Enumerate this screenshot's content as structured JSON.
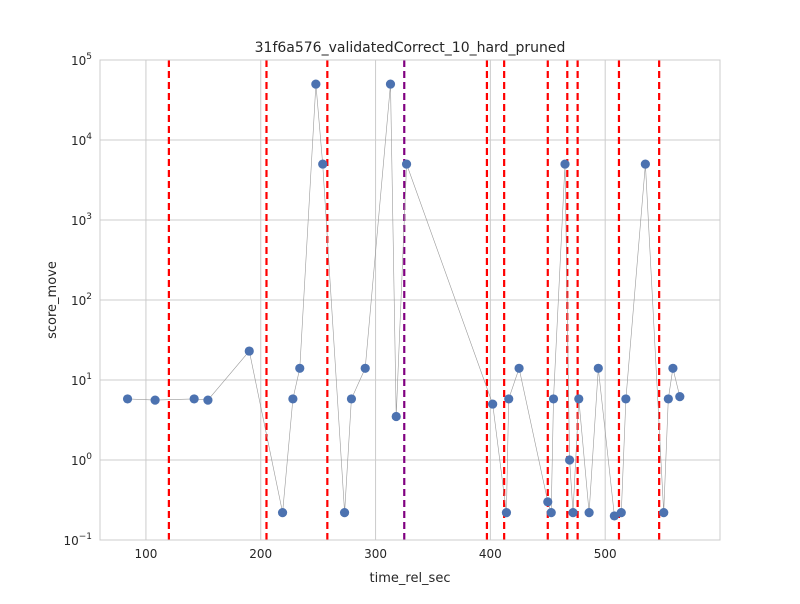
{
  "chart_data": {
    "type": "scatter",
    "title": "31f6a576_validatedCorrect_10_hard_pruned",
    "xlabel": "time_rel_sec",
    "ylabel": "score_move",
    "xlim": [
      60,
      890
    ],
    "ylim": [
      0.1,
      100000
    ],
    "yscale": "log",
    "grid": true,
    "x_ticks": [
      100,
      200,
      300,
      400,
      500
    ],
    "y_ticks": [
      {
        "value": 0.1,
        "base": "10",
        "exp": "−1"
      },
      {
        "value": 1,
        "base": "10",
        "exp": "0"
      },
      {
        "value": 10,
        "base": "10",
        "exp": "1"
      },
      {
        "value": 100,
        "base": "10",
        "exp": "2"
      },
      {
        "value": 1000,
        "base": "10",
        "exp": "3"
      },
      {
        "value": 10000,
        "base": "10",
        "exp": "4"
      },
      {
        "value": 100000,
        "base": "10",
        "exp": "5"
      }
    ],
    "series": [
      {
        "marker_color": "#4C72B0",
        "line_color": "#999999",
        "points": [
          {
            "x": 84,
            "y": 5.8
          },
          {
            "x": 108,
            "y": 5.6
          },
          {
            "x": 142,
            "y": 5.8
          },
          {
            "x": 154,
            "y": 5.6
          },
          {
            "x": 190,
            "y": 23
          },
          {
            "x": 219,
            "y": 0.22
          },
          {
            "x": 228,
            "y": 5.8
          },
          {
            "x": 234,
            "y": 14
          },
          {
            "x": 248,
            "y": 50000
          },
          {
            "x": 254,
            "y": 5000
          },
          {
            "x": 273,
            "y": 0.22
          },
          {
            "x": 279,
            "y": 5.8
          },
          {
            "x": 291,
            "y": 14
          },
          {
            "x": 313,
            "y": 50000
          },
          {
            "x": 318,
            "y": 3.5
          },
          {
            "x": 327,
            "y": 5000
          },
          {
            "x": 402,
            "y": 5
          },
          {
            "x": 414,
            "y": 0.22
          },
          {
            "x": 416,
            "y": 5.8
          },
          {
            "x": 425,
            "y": 14
          },
          {
            "x": 450,
            "y": 0.3
          },
          {
            "x": 453,
            "y": 0.22
          },
          {
            "x": 455,
            "y": 5.8
          },
          {
            "x": 465,
            "y": 5000
          },
          {
            "x": 469,
            "y": 1
          },
          {
            "x": 472,
            "y": 0.22
          },
          {
            "x": 477,
            "y": 5.8
          },
          {
            "x": 486,
            "y": 0.22
          },
          {
            "x": 494,
            "y": 14
          },
          {
            "x": 508,
            "y": 0.2
          },
          {
            "x": 514,
            "y": 0.22
          },
          {
            "x": 518,
            "y": 5.8
          },
          {
            "x": 535,
            "y": 5000
          },
          {
            "x": 551,
            "y": 0.22
          },
          {
            "x": 555,
            "y": 5.8
          },
          {
            "x": 559,
            "y": 14
          },
          {
            "x": 565,
            "y": 6.2
          }
        ]
      }
    ],
    "vlines": [
      {
        "x": 120,
        "color": "#ff0000"
      },
      {
        "x": 205,
        "color": "#ff0000"
      },
      {
        "x": 258,
        "color": "#ff0000"
      },
      {
        "x": 325,
        "color": "#800080"
      },
      {
        "x": 397,
        "color": "#ff0000"
      },
      {
        "x": 412,
        "color": "#ff0000"
      },
      {
        "x": 450,
        "color": "#ff0000"
      },
      {
        "x": 467,
        "color": "#ff0000"
      },
      {
        "x": 476,
        "color": "#ff0000"
      },
      {
        "x": 512,
        "color": "#ff0000"
      },
      {
        "x": 547,
        "color": "#ff0000"
      }
    ],
    "colors": {
      "background": "#ffffff",
      "grid": "#cccccc",
      "axes_edge": "#cccccc"
    }
  }
}
